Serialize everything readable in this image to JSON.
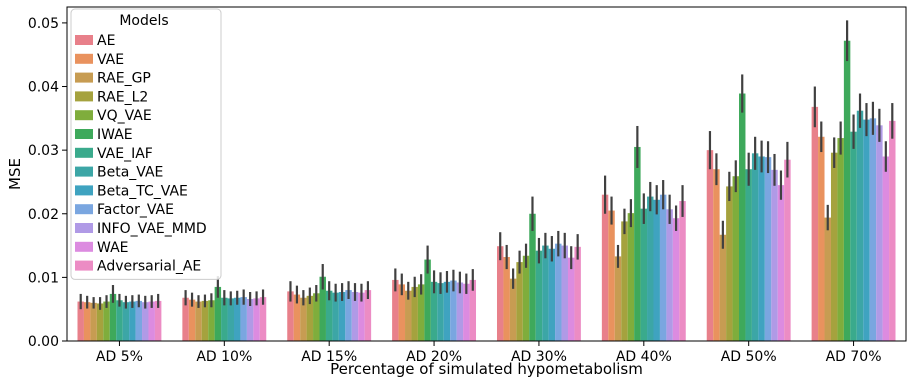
{
  "chart_data": {
    "type": "bar",
    "xlabel": "Percentage of simulated hypometabolism",
    "ylabel": "MSE",
    "ylim": [
      0,
      0.0525
    ],
    "yticks": [
      "0.00",
      "0.01",
      "0.02",
      "0.03",
      "0.04",
      "0.05"
    ],
    "ytick_values": [
      0,
      0.01,
      0.02,
      0.03,
      0.04,
      0.05
    ],
    "grid": false,
    "legend": {
      "title": "Models",
      "placement": "top-left"
    },
    "categories": [
      "AD 5%",
      "AD 10%",
      "AD 15%",
      "AD 20%",
      "AD 30%",
      "AD 40%",
      "AD 50%",
      "AD 70%"
    ],
    "series": [
      {
        "name": "AE",
        "color": "#e8808a",
        "values": [
          0.0062,
          0.0068,
          0.0078,
          0.0096,
          0.0149,
          0.023,
          0.03,
          0.0368
        ],
        "errors": [
          0.0012,
          0.0012,
          0.0016,
          0.0018,
          0.0022,
          0.003,
          0.003,
          0.0032
        ]
      },
      {
        "name": "VAE",
        "color": "#e9925e",
        "values": [
          0.0061,
          0.0065,
          0.0073,
          0.0089,
          0.0132,
          0.0205,
          0.027,
          0.0321
        ],
        "errors": [
          0.001,
          0.0011,
          0.0014,
          0.0017,
          0.0019,
          0.0022,
          0.0025,
          0.0024
        ]
      },
      {
        "name": "RAE_GP",
        "color": "#c79c52",
        "values": [
          0.006,
          0.0062,
          0.0068,
          0.0079,
          0.0098,
          0.0133,
          0.0167,
          0.0194
        ],
        "errors": [
          0.0009,
          0.001,
          0.0012,
          0.0014,
          0.0016,
          0.0018,
          0.0022,
          0.002
        ]
      },
      {
        "name": "RAE_L2",
        "color": "#a5a23e",
        "values": [
          0.0059,
          0.0063,
          0.0071,
          0.0085,
          0.0124,
          0.0188,
          0.0243,
          0.0296
        ],
        "errors": [
          0.001,
          0.001,
          0.0013,
          0.0016,
          0.0018,
          0.002,
          0.0023,
          0.0024
        ]
      },
      {
        "name": "VQ_VAE",
        "color": "#7fad3c",
        "values": [
          0.0062,
          0.0064,
          0.0075,
          0.0089,
          0.0134,
          0.0201,
          0.0259,
          0.0319
        ],
        "errors": [
          0.001,
          0.0011,
          0.0013,
          0.0016,
          0.0019,
          0.0022,
          0.0025,
          0.0026
        ]
      },
      {
        "name": "IWAE",
        "color": "#3ea95b",
        "values": [
          0.0074,
          0.0085,
          0.0101,
          0.0128,
          0.02,
          0.0305,
          0.0389,
          0.0472
        ],
        "errors": [
          0.0014,
          0.0017,
          0.002,
          0.0022,
          0.0027,
          0.0033,
          0.003,
          0.0032
        ]
      },
      {
        "name": "VAE_IAF",
        "color": "#3aaa8c",
        "values": [
          0.0064,
          0.0068,
          0.0079,
          0.0093,
          0.0142,
          0.0208,
          0.027,
          0.0329
        ],
        "errors": [
          0.001,
          0.0012,
          0.0015,
          0.0018,
          0.002,
          0.0024,
          0.0026,
          0.0027
        ]
      },
      {
        "name": "Beta_VAE",
        "color": "#3ca6a6",
        "values": [
          0.0061,
          0.0067,
          0.0076,
          0.0091,
          0.015,
          0.0227,
          0.0295,
          0.0362
        ],
        "errors": [
          0.001,
          0.0011,
          0.0014,
          0.0017,
          0.002,
          0.0023,
          0.0026,
          0.0027
        ]
      },
      {
        "name": "Beta_TC_VAE",
        "color": "#3fa3c0",
        "values": [
          0.0062,
          0.0068,
          0.0077,
          0.0093,
          0.0145,
          0.0222,
          0.029,
          0.0348
        ],
        "errors": [
          0.001,
          0.0011,
          0.0014,
          0.0017,
          0.002,
          0.0023,
          0.0025,
          0.0026
        ]
      },
      {
        "name": "Factor_VAE",
        "color": "#7aa6e0",
        "values": [
          0.0063,
          0.0069,
          0.008,
          0.0095,
          0.0153,
          0.023,
          0.0289,
          0.035
        ],
        "errors": [
          0.001,
          0.0012,
          0.0014,
          0.0017,
          0.002,
          0.0023,
          0.0025,
          0.0026
        ]
      },
      {
        "name": "INFO_VAE_MMD",
        "color": "#b09ae6",
        "values": [
          0.0061,
          0.0066,
          0.0077,
          0.0092,
          0.015,
          0.0207,
          0.0269,
          0.0339
        ],
        "errors": [
          0.001,
          0.0011,
          0.0014,
          0.0017,
          0.002,
          0.0023,
          0.0025,
          0.0026
        ]
      },
      {
        "name": "WAE",
        "color": "#dc8be0",
        "values": [
          0.0062,
          0.0067,
          0.0076,
          0.009,
          0.0131,
          0.0193,
          0.0245,
          0.029
        ],
        "errors": [
          0.001,
          0.0011,
          0.0014,
          0.0016,
          0.0018,
          0.002,
          0.0023,
          0.0024
        ]
      },
      {
        "name": "Adversarial_AE",
        "color": "#ec8cc4",
        "values": [
          0.0063,
          0.0069,
          0.008,
          0.0096,
          0.0148,
          0.022,
          0.0285,
          0.0346
        ],
        "errors": [
          0.0011,
          0.0012,
          0.0014,
          0.0017,
          0.002,
          0.0025,
          0.0028,
          0.0028
        ]
      }
    ]
  }
}
